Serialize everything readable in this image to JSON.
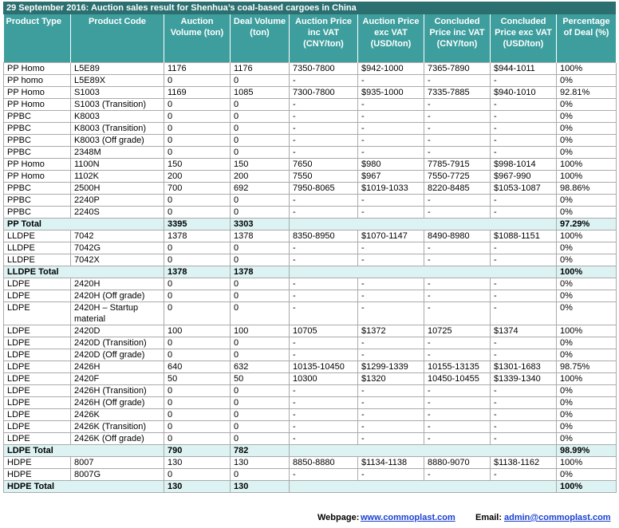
{
  "title": "29 September 2016: Auction sales result for Shenhua’s coal-based cargoes in China",
  "headers": [
    "Product Type",
    "Product Code",
    "Auction Volume (ton)",
    "Deal Volume (ton)",
    "Auction Price inc VAT (CNY/ton)",
    "Auction Price exc VAT (USD/ton)",
    "Concluded Price inc VAT (CNY/ton)",
    "Concluded Price exc VAT (USD/ton)",
    "Percentage of Deal (%)"
  ],
  "rows": [
    [
      "PP Homo",
      "L5E89",
      "1176",
      "1176",
      "7350-7800",
      "$942-1000",
      "7365-7890",
      "$944-1011",
      "100%"
    ],
    [
      "PP homo",
      "L5E89X",
      "0",
      "0",
      "-",
      "-",
      "-",
      "-",
      "0%"
    ],
    [
      "PP Homo",
      "S1003",
      "1169",
      "1085",
      "7300-7800",
      "$935-1000",
      "7335-7885",
      "$940-1010",
      "92.81%"
    ],
    [
      "PP Homo",
      "S1003 (Transition)",
      "0",
      "0",
      "-",
      "-",
      "-",
      "-",
      "0%"
    ],
    [
      "PPBC",
      "K8003",
      "0",
      "0",
      "-",
      "-",
      "-",
      "-",
      "0%"
    ],
    [
      "PPBC",
      "K8003 (Transition)",
      "0",
      "0",
      "-",
      "-",
      "-",
      "-",
      "0%"
    ],
    [
      "PPBC",
      "K8003 (Off grade)",
      "0",
      "0",
      "-",
      "-",
      "-",
      "-",
      "0%"
    ],
    [
      "PPBC",
      "2348M",
      "0",
      "0",
      "-",
      "-",
      "-",
      "-",
      "0%"
    ],
    [
      "PP Homo",
      "1100N",
      "150",
      "150",
      "7650",
      "$980",
      "7785-7915",
      "$998-1014",
      "100%"
    ],
    [
      "PP Homo",
      "1102K",
      "200",
      "200",
      "7550",
      "$967",
      "7550-7725",
      "$967-990",
      "100%"
    ],
    [
      "PPBC",
      "2500H",
      "700",
      "692",
      "7950-8065",
      "$1019-1033",
      "8220-8485",
      "$1053-1087",
      "98.86%"
    ],
    [
      "PPBC",
      "2240P",
      "0",
      "0",
      "-",
      "-",
      "-",
      "-",
      "0%"
    ],
    [
      "PPBC",
      "2240S",
      "0",
      "0",
      "-",
      "-",
      "-",
      "-",
      "0%"
    ],
    {
      "total": "PP Total",
      "auction_volume": "3395",
      "deal_volume": "3303",
      "percentage": "97.29%"
    },
    [
      "LLDPE",
      "7042",
      "1378",
      "1378",
      "8350-8950",
      "$1070-1147",
      "8490-8980",
      "$1088-1151",
      "100%"
    ],
    [
      "LLDPE",
      "7042G",
      "0",
      "0",
      "-",
      "-",
      "-",
      "-",
      "0%"
    ],
    [
      "LLDPE",
      "7042X",
      "0",
      "0",
      "-",
      "-",
      "-",
      "-",
      "0%"
    ],
    {
      "total": "LLDPE Total",
      "auction_volume": "1378",
      "deal_volume": "1378",
      "percentage": "100%"
    },
    [
      "LDPE",
      "2420H",
      "0",
      "0",
      "-",
      "-",
      "-",
      "-",
      "0%"
    ],
    [
      "LDPE",
      "2420H (Off grade)",
      "0",
      "0",
      "-",
      "-",
      "-",
      "-",
      "0%"
    ],
    [
      "LDPE",
      "2420H – Startup material",
      "0",
      "0",
      "-",
      "-",
      "-",
      "-",
      "0%"
    ],
    [
      "LDPE",
      "2420D",
      "100",
      "100",
      "10705",
      "$1372",
      "10725",
      "$1374",
      "100%"
    ],
    [
      "LDPE",
      "2420D (Transition)",
      "0",
      "0",
      "-",
      "-",
      "-",
      "-",
      "0%"
    ],
    [
      "LDPE",
      "2420D (Off grade)",
      "0",
      "0",
      "-",
      "-",
      "-",
      "-",
      "0%"
    ],
    [
      "LDPE",
      "2426H",
      "640",
      "632",
      "10135-10450",
      "$1299-1339",
      "10155-13135",
      "$1301-1683",
      "98.75%"
    ],
    [
      "LDPE",
      "2420F",
      "50",
      "50",
      "10300",
      "$1320",
      "10450-10455",
      "$1339-1340",
      "100%"
    ],
    [
      "LDPE",
      "2426H (Transition)",
      "0",
      "0",
      "-",
      "-",
      "-",
      "-",
      "0%"
    ],
    [
      "LDPE",
      "2426H (Off grade)",
      "0",
      "0",
      "-",
      "-",
      "-",
      "-",
      "0%"
    ],
    [
      "LDPE",
      "2426K",
      "0",
      "0",
      "-",
      "-",
      "-",
      "-",
      "0%"
    ],
    [
      "LDPE",
      "2426K (Transition)",
      "0",
      "0",
      "-",
      "-",
      "-",
      "-",
      "0%"
    ],
    [
      "LDPE",
      "2426K (Off grade)",
      "0",
      "0",
      "-",
      "-",
      "-",
      "-",
      "0%"
    ],
    {
      "total": "LDPE Total",
      "auction_volume": "790",
      "deal_volume": "782",
      "percentage": "98.99%"
    },
    [
      "HDPE",
      "8007",
      "130",
      "130",
      "8850-8880",
      "$1134-1138",
      "8880-9070",
      "$1138-1162",
      "100%"
    ],
    [
      "HDPE",
      "8007G",
      "0",
      "0",
      "-",
      "-",
      "-",
      "-",
      "0%"
    ],
    {
      "total": "HDPE Total",
      "auction_volume": "130",
      "deal_volume": "130",
      "percentage": "100%"
    }
  ],
  "footer": {
    "webpage_label": "Webpage:",
    "webpage": "www.commoplast.com",
    "email_label": "Email:",
    "email": "admin@commoplast.com"
  }
}
